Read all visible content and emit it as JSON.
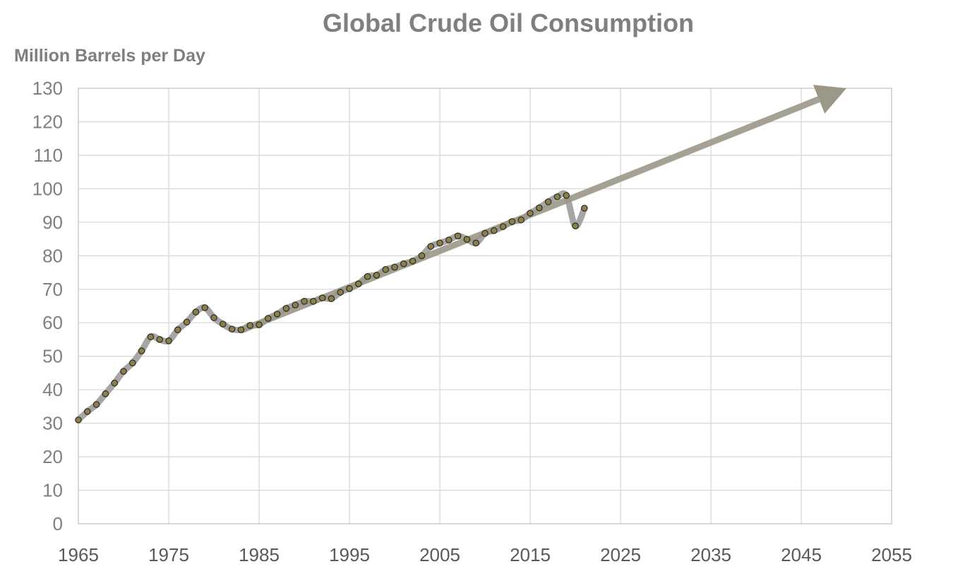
{
  "chart_data": {
    "type": "line",
    "title": "Global Crude Oil Consumption",
    "xlabel": "",
    "ylabel": "Million Barrels per Day",
    "xlim": [
      1965,
      2055
    ],
    "ylim": [
      0,
      130
    ],
    "x_ticks": [
      1965,
      1975,
      1985,
      1995,
      2005,
      2015,
      2025,
      2035,
      2045,
      2055
    ],
    "x_tick_labels": [
      "1965",
      "1975",
      "1985",
      "1995",
      "2005",
      "2015",
      "2025",
      "2035",
      "2045",
      "2055"
    ],
    "y_ticks": [
      0,
      10,
      20,
      30,
      40,
      50,
      60,
      70,
      80,
      90,
      100,
      110,
      120,
      130
    ],
    "y_tick_labels": [
      "0",
      "10",
      "20",
      "30",
      "40",
      "50",
      "60",
      "70",
      "80",
      "90",
      "100",
      "110",
      "120",
      "130"
    ],
    "grid": true,
    "legend": "none",
    "series": [
      {
        "name": "Global crude oil consumption",
        "x": [
          1965,
          1966,
          1967,
          1968,
          1969,
          1970,
          1971,
          1972,
          1973,
          1974,
          1975,
          1976,
          1977,
          1978,
          1979,
          1980,
          1981,
          1982,
          1983,
          1984,
          1985,
          1986,
          1987,
          1988,
          1989,
          1990,
          1991,
          1992,
          1993,
          1994,
          1995,
          1996,
          1997,
          1998,
          1999,
          2000,
          2001,
          2002,
          2003,
          2004,
          2005,
          2006,
          2007,
          2008,
          2009,
          2010,
          2011,
          2012,
          2013,
          2014,
          2015,
          2016,
          2017,
          2018,
          2019,
          2020,
          2021
        ],
        "values": [
          31.0,
          33.5,
          35.6,
          38.8,
          42.0,
          45.5,
          48.0,
          51.6,
          55.8,
          55.0,
          54.6,
          57.9,
          60.2,
          63.2,
          64.5,
          61.5,
          59.6,
          58.1,
          57.9,
          59.2,
          59.4,
          61.3,
          62.6,
          64.3,
          65.3,
          66.4,
          66.4,
          67.4,
          67.2,
          69.1,
          70.2,
          71.6,
          73.8,
          74.2,
          75.9,
          76.6,
          77.6,
          78.4,
          80.0,
          82.8,
          83.8,
          84.7,
          85.9,
          84.9,
          83.8,
          86.7,
          87.5,
          88.7,
          90.2,
          90.7,
          92.7,
          94.3,
          96.1,
          97.6,
          98.0,
          88.9,
          94.2
        ],
        "line_color": "#a6a6a6",
        "marker_fill": "#8c7f4f",
        "marker_stroke": "#2b2b1b"
      }
    ],
    "annotations": [
      {
        "type": "trend-arrow",
        "from": [
          1983,
          57.7
        ],
        "to": [
          2050,
          130
        ],
        "color": "#9b9888"
      }
    ]
  }
}
